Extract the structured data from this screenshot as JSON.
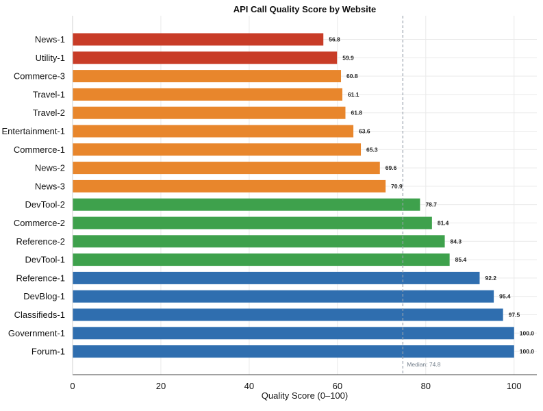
{
  "chart_data": {
    "type": "bar",
    "orientation": "horizontal",
    "title": "API Call Quality Score by Website",
    "xlabel": "Quality Score (0–100)",
    "ylabel": "",
    "xlim": [
      0,
      100
    ],
    "x_ticks": [
      0,
      20,
      40,
      60,
      80,
      100
    ],
    "grid": true,
    "categories": [
      "News-1",
      "Utility-1",
      "Commerce-3",
      "Travel-1",
      "Travel-2",
      "Entertainment-1",
      "Commerce-1",
      "News-2",
      "News-3",
      "DevTool-2",
      "Commerce-2",
      "Reference-2",
      "DevTool-1",
      "Reference-1",
      "DevBlog-1",
      "Classifieds-1",
      "Government-1",
      "Forum-1"
    ],
    "values": [
      56.8,
      59.9,
      60.8,
      61.1,
      61.8,
      63.6,
      65.3,
      69.6,
      70.9,
      78.7,
      81.4,
      84.3,
      85.4,
      92.2,
      95.4,
      97.5,
      100.0,
      100.0
    ],
    "value_labels": [
      "56.8",
      "59.9",
      "60.8",
      "61.1",
      "61.8",
      "63.6",
      "65.3",
      "69.6",
      "70.9",
      "78.7",
      "81.4",
      "84.3",
      "85.4",
      "92.2",
      "95.4",
      "97.5",
      "100.0",
      "100.0"
    ],
    "bar_colors": [
      "#c83c27",
      "#c83c27",
      "#e8862c",
      "#e8862c",
      "#e8862c",
      "#e8862c",
      "#e8862c",
      "#e8862c",
      "#e8862c",
      "#3ea14c",
      "#3ea14c",
      "#3ea14c",
      "#3ea14c",
      "#2f6eaf",
      "#2f6eaf",
      "#2f6eaf",
      "#2f6eaf",
      "#2f6eaf"
    ],
    "median": {
      "value": 74.8,
      "label": "Median: 74.8",
      "color": "#9aa3ad"
    },
    "colors": {
      "axis": "#444444",
      "grid": "#e9e9e9"
    }
  }
}
